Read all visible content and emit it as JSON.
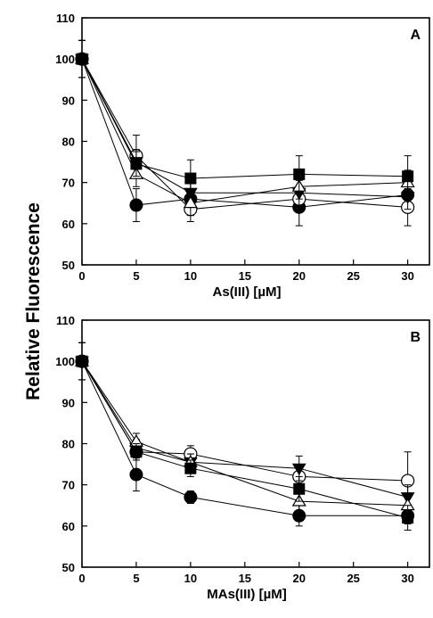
{
  "ylabel": "Relative Fluorescence",
  "chart_data": [
    {
      "type": "line",
      "panel_label": "A",
      "xlabel": "As(III) [µM]",
      "ylabel": "Relative Fluorescence",
      "xlim": [
        0,
        32
      ],
      "ylim": [
        50,
        110
      ],
      "x": [
        0,
        5,
        10,
        20,
        30
      ],
      "xticks": [
        0,
        5,
        10,
        15,
        20,
        25,
        30
      ],
      "yticks": [
        50,
        60,
        70,
        80,
        90,
        100,
        110
      ],
      "grid": false,
      "series": [
        {
          "marker": "circle-filled",
          "values": [
            100,
            64.5,
            66,
            64,
            67
          ],
          "errors": [
            4.5,
            4,
            4,
            4.5,
            2
          ]
        },
        {
          "marker": "circle-open",
          "values": [
            100,
            76.5,
            63.5,
            66,
            64
          ],
          "errors": [
            4.5,
            5,
            3,
            3,
            4.5
          ]
        },
        {
          "marker": "triangle-down-filled",
          "values": [
            100,
            75,
            67.5,
            67.5,
            66.5
          ],
          "errors": [
            4.5,
            3,
            3,
            3,
            3
          ]
        },
        {
          "marker": "triangle-up-open",
          "values": [
            100,
            72,
            65,
            69,
            70
          ],
          "errors": [
            4.5,
            3,
            3,
            3,
            3
          ]
        },
        {
          "marker": "square-filled",
          "values": [
            100,
            74.5,
            71,
            72,
            71.5
          ],
          "errors": [
            4.5,
            3,
            4.5,
            4.5,
            5
          ]
        }
      ]
    },
    {
      "type": "line",
      "panel_label": "B",
      "xlabel": "MAs(III) [µM]",
      "ylabel": "Relative Fluorescence",
      "xlim": [
        0,
        32
      ],
      "ylim": [
        50,
        110
      ],
      "x": [
        0,
        5,
        10,
        20,
        30
      ],
      "xticks": [
        0,
        5,
        10,
        15,
        20,
        25,
        30
      ],
      "yticks": [
        50,
        60,
        70,
        80,
        90,
        100,
        110
      ],
      "grid": false,
      "series": [
        {
          "marker": "circle-filled",
          "values": [
            100,
            72.5,
            67,
            62.5,
            62.5
          ],
          "errors": [
            4.5,
            4,
            1.5,
            2.5,
            2
          ]
        },
        {
          "marker": "circle-open",
          "values": [
            100,
            78,
            77.5,
            72,
            71
          ],
          "errors": [
            4.5,
            2,
            2,
            3,
            7
          ]
        },
        {
          "marker": "triangle-down-filled",
          "values": [
            100,
            79,
            75.5,
            74,
            67
          ],
          "errors": [
            4.5,
            2,
            2,
            3,
            3
          ]
        },
        {
          "marker": "triangle-up-open",
          "values": [
            100,
            80.5,
            75.5,
            66,
            65
          ],
          "errors": [
            4.5,
            2,
            2,
            3,
            3
          ]
        },
        {
          "marker": "square-filled",
          "values": [
            100,
            78,
            74,
            69,
            62
          ],
          "errors": [
            4.5,
            2,
            2,
            3,
            3
          ]
        }
      ]
    }
  ]
}
